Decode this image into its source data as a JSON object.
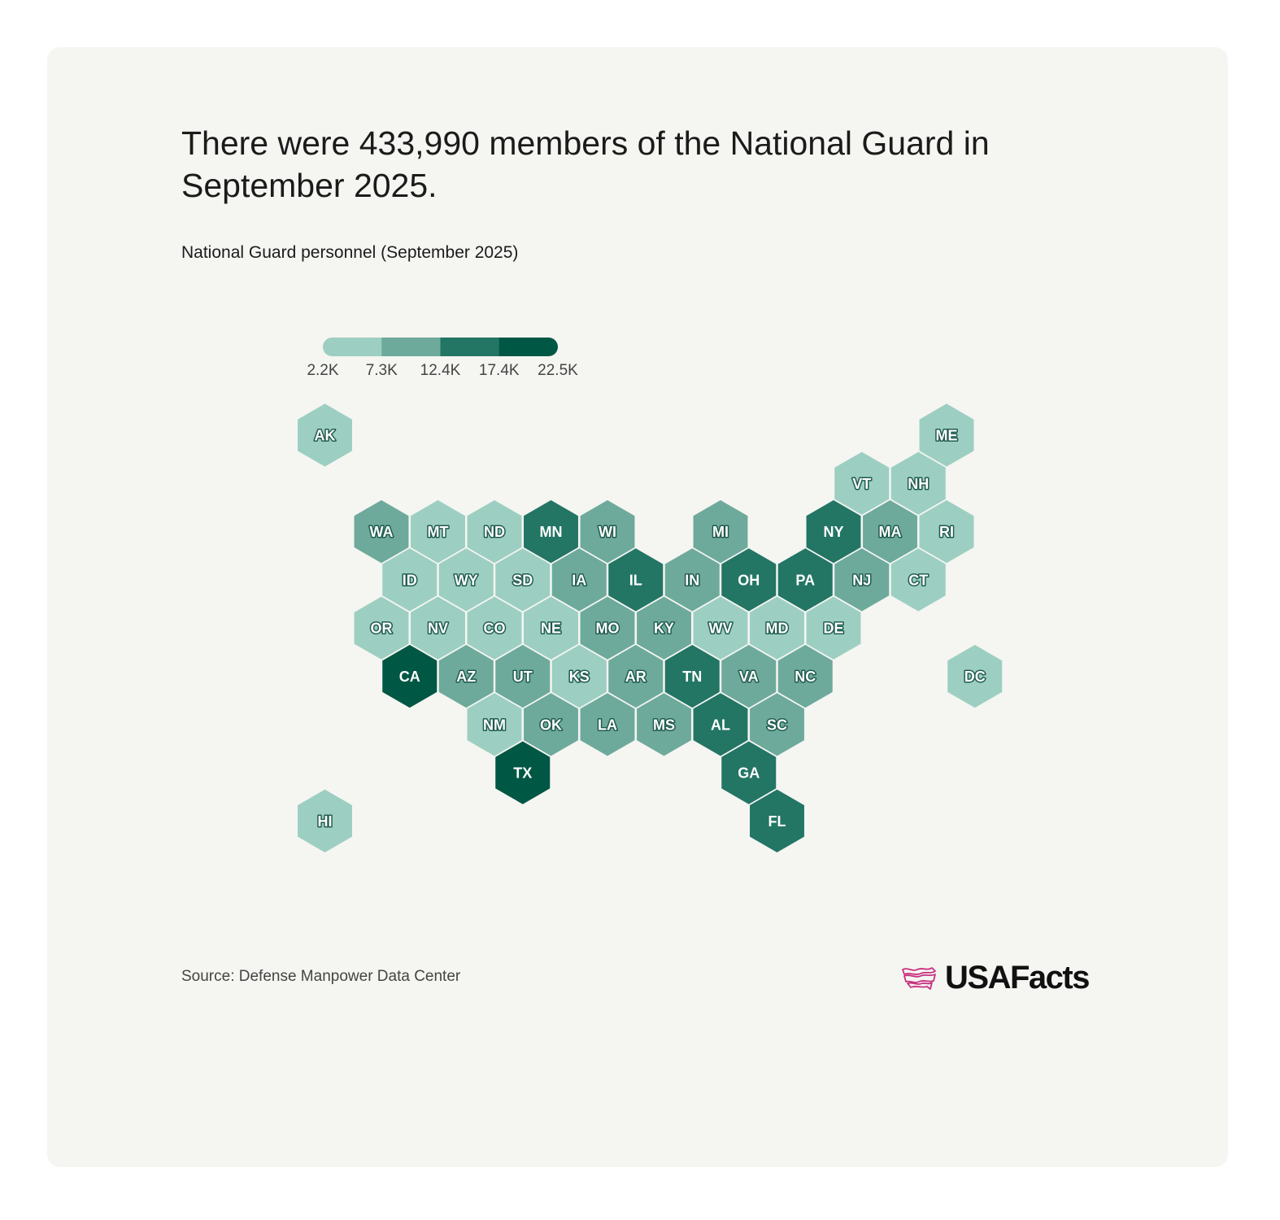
{
  "title": "There were 433,990 members of the National Guard in September 2025.",
  "subtitle": "National Guard personnel (September 2025)",
  "source": "Source: Defense Manpower Data Center",
  "logo_text": "USAFacts",
  "colors": {
    "bins": [
      "#9ccfc1",
      "#6daa9b",
      "#237564",
      "#005743"
    ],
    "brand": "#c8307f"
  },
  "chart_data": {
    "type": "heatmap",
    "subtype": "hex-tile-map",
    "title": "National Guard personnel (September 2025)",
    "legend": {
      "ticks": [
        "2.2K",
        "7.3K",
        "12.4K",
        "17.4K",
        "22.5K"
      ],
      "placement": "top-left"
    },
    "states": [
      {
        "code": "AK",
        "col": -1,
        "row": 0,
        "bin": 1
      },
      {
        "code": "ME",
        "col": 10,
        "row": 0,
        "bin": 1
      },
      {
        "code": "VT",
        "col": 8.5,
        "row": 1,
        "bin": 1
      },
      {
        "code": "NH",
        "col": 9.5,
        "row": 1,
        "bin": 1
      },
      {
        "code": "WA",
        "col": 0,
        "row": 2,
        "bin": 2
      },
      {
        "code": "MT",
        "col": 1,
        "row": 2,
        "bin": 1
      },
      {
        "code": "ND",
        "col": 2,
        "row": 2,
        "bin": 1
      },
      {
        "code": "MN",
        "col": 3,
        "row": 2,
        "bin": 3
      },
      {
        "code": "WI",
        "col": 4,
        "row": 2,
        "bin": 2
      },
      {
        "code": "MI",
        "col": 6,
        "row": 2,
        "bin": 2
      },
      {
        "code": "NY",
        "col": 8,
        "row": 2,
        "bin": 3
      },
      {
        "code": "MA",
        "col": 9,
        "row": 2,
        "bin": 2
      },
      {
        "code": "RI",
        "col": 10,
        "row": 2,
        "bin": 1
      },
      {
        "code": "ID",
        "col": 0.5,
        "row": 3,
        "bin": 1
      },
      {
        "code": "WY",
        "col": 1.5,
        "row": 3,
        "bin": 1
      },
      {
        "code": "SD",
        "col": 2.5,
        "row": 3,
        "bin": 1
      },
      {
        "code": "IA",
        "col": 3.5,
        "row": 3,
        "bin": 2
      },
      {
        "code": "IL",
        "col": 4.5,
        "row": 3,
        "bin": 3
      },
      {
        "code": "IN",
        "col": 5.5,
        "row": 3,
        "bin": 2
      },
      {
        "code": "OH",
        "col": 6.5,
        "row": 3,
        "bin": 3
      },
      {
        "code": "PA",
        "col": 7.5,
        "row": 3,
        "bin": 3
      },
      {
        "code": "NJ",
        "col": 8.5,
        "row": 3,
        "bin": 2
      },
      {
        "code": "CT",
        "col": 9.5,
        "row": 3,
        "bin": 1
      },
      {
        "code": "OR",
        "col": 0,
        "row": 4,
        "bin": 1
      },
      {
        "code": "NV",
        "col": 1,
        "row": 4,
        "bin": 1
      },
      {
        "code": "CO",
        "col": 2,
        "row": 4,
        "bin": 1
      },
      {
        "code": "NE",
        "col": 3,
        "row": 4,
        "bin": 1
      },
      {
        "code": "MO",
        "col": 4,
        "row": 4,
        "bin": 2
      },
      {
        "code": "KY",
        "col": 5,
        "row": 4,
        "bin": 2
      },
      {
        "code": "WV",
        "col": 6,
        "row": 4,
        "bin": 1
      },
      {
        "code": "MD",
        "col": 7,
        "row": 4,
        "bin": 1
      },
      {
        "code": "DE",
        "col": 8,
        "row": 4,
        "bin": 1
      },
      {
        "code": "CA",
        "col": 0.5,
        "row": 5,
        "bin": 4
      },
      {
        "code": "AZ",
        "col": 1.5,
        "row": 5,
        "bin": 2
      },
      {
        "code": "UT",
        "col": 2.5,
        "row": 5,
        "bin": 2
      },
      {
        "code": "KS",
        "col": 3.5,
        "row": 5,
        "bin": 1
      },
      {
        "code": "AR",
        "col": 4.5,
        "row": 5,
        "bin": 2
      },
      {
        "code": "TN",
        "col": 5.5,
        "row": 5,
        "bin": 3
      },
      {
        "code": "VA",
        "col": 6.5,
        "row": 5,
        "bin": 2
      },
      {
        "code": "NC",
        "col": 7.5,
        "row": 5,
        "bin": 2
      },
      {
        "code": "DC",
        "col": 10.5,
        "row": 5,
        "bin": 1
      },
      {
        "code": "NM",
        "col": 2,
        "row": 6,
        "bin": 1
      },
      {
        "code": "OK",
        "col": 3,
        "row": 6,
        "bin": 2
      },
      {
        "code": "LA",
        "col": 4,
        "row": 6,
        "bin": 2
      },
      {
        "code": "MS",
        "col": 5,
        "row": 6,
        "bin": 2
      },
      {
        "code": "AL",
        "col": 6,
        "row": 6,
        "bin": 3
      },
      {
        "code": "SC",
        "col": 7,
        "row": 6,
        "bin": 2
      },
      {
        "code": "TX",
        "col": 2.5,
        "row": 7,
        "bin": 4
      },
      {
        "code": "GA",
        "col": 6.5,
        "row": 7,
        "bin": 3
      },
      {
        "code": "HI",
        "col": -1,
        "row": 8,
        "bin": 1
      },
      {
        "code": "FL",
        "col": 7,
        "row": 8,
        "bin": 3
      }
    ]
  }
}
